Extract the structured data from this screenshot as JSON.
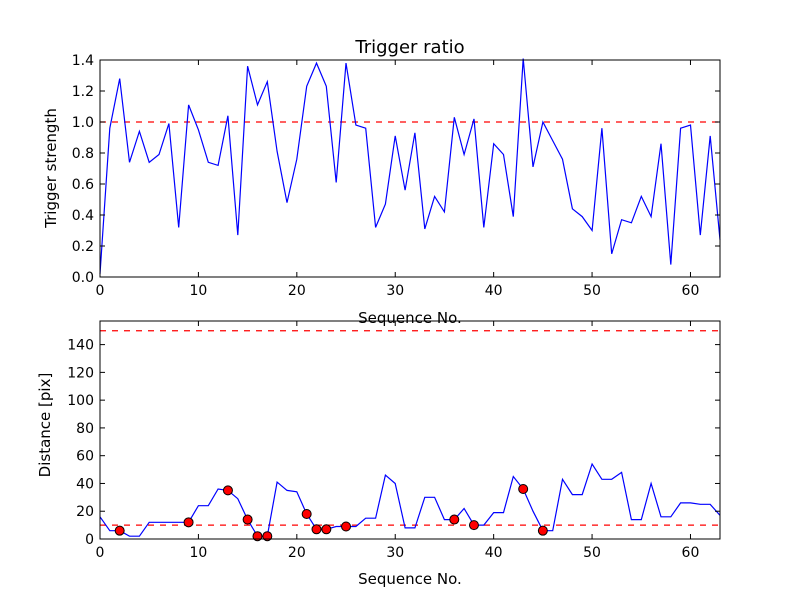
{
  "chart_data": [
    {
      "type": "line",
      "title": "Trigger ratio",
      "xlabel": "Sequence No.",
      "ylabel": "Trigger strength",
      "xlim": [
        0,
        63
      ],
      "ylim": [
        0,
        1.4
      ],
      "xticks": [
        "0",
        "10",
        "20",
        "30",
        "40",
        "50",
        "60"
      ],
      "yticks": [
        "0.0",
        "0.2",
        "0.4",
        "0.6",
        "0.8",
        "1.0",
        "1.2",
        "1.4"
      ],
      "threshold": 1.0,
      "colors": {
        "line": "#0000ff",
        "threshold": "#ff0000"
      },
      "series": [
        {
          "x": [
            0,
            1,
            2,
            3,
            4,
            5,
            6,
            7,
            8,
            9,
            10,
            11,
            12,
            13,
            14,
            15,
            16,
            17,
            18,
            19,
            20,
            21,
            22,
            23,
            24,
            25,
            26,
            27,
            28,
            29,
            30,
            31,
            32,
            33,
            34,
            35,
            36,
            37,
            38,
            39,
            40,
            41,
            42,
            43,
            44,
            45,
            46,
            47,
            48,
            49,
            50,
            51,
            52,
            53,
            54,
            55,
            56,
            57,
            58,
            59,
            60,
            61,
            62,
            63
          ],
          "values": [
            0.02,
            0.96,
            1.28,
            0.74,
            0.94,
            0.74,
            0.79,
            0.99,
            0.32,
            1.11,
            0.95,
            0.74,
            0.72,
            1.04,
            0.27,
            1.36,
            1.11,
            1.26,
            0.81,
            0.48,
            0.76,
            1.23,
            1.38,
            1.23,
            0.61,
            1.38,
            0.98,
            0.96,
            0.32,
            0.47,
            0.91,
            0.56,
            0.93,
            0.31,
            0.52,
            0.42,
            1.03,
            0.79,
            1.02,
            0.32,
            0.86,
            0.79,
            0.39,
            1.41,
            0.71,
            1.0,
            0.88,
            0.76,
            0.44,
            0.39,
            0.3,
            0.96,
            0.15,
            0.37,
            0.35,
            0.52,
            0.39,
            0.86,
            0.08,
            0.96,
            0.98,
            0.27,
            0.91,
            0.24
          ]
        }
      ]
    },
    {
      "type": "line",
      "title": "",
      "xlabel": "Sequence No.",
      "ylabel": "Distance [pix]",
      "xlim": [
        0,
        63
      ],
      "ylim": [
        0,
        157
      ],
      "xticks": [
        "0",
        "10",
        "20",
        "30",
        "40",
        "50",
        "60"
      ],
      "yticks": [
        "0",
        "20",
        "40",
        "60",
        "80",
        "100",
        "120",
        "140"
      ],
      "thresholds": [
        10,
        150
      ],
      "colors": {
        "line": "#0000ff",
        "threshold": "#ff0000",
        "marker": "#ff0000"
      },
      "series": [
        {
          "x": [
            0,
            1,
            2,
            3,
            4,
            5,
            6,
            7,
            8,
            9,
            10,
            11,
            12,
            13,
            14,
            15,
            16,
            17,
            18,
            19,
            20,
            21,
            22,
            23,
            24,
            25,
            26,
            27,
            28,
            29,
            30,
            31,
            32,
            33,
            34,
            35,
            36,
            37,
            38,
            39,
            40,
            41,
            42,
            43,
            44,
            45,
            46,
            47,
            48,
            49,
            50,
            51,
            52,
            53,
            54,
            55,
            56,
            57,
            58,
            59,
            60,
            61,
            62,
            63
          ],
          "values": [
            16,
            6,
            6,
            2,
            2,
            12,
            12,
            12,
            12,
            12,
            24,
            24,
            36,
            35,
            29,
            14,
            2,
            2,
            41,
            35,
            34,
            18,
            7,
            7,
            9,
            9,
            9,
            15,
            15,
            46,
            40,
            8,
            8,
            30,
            30,
            14,
            14,
            22,
            10,
            10,
            19,
            19,
            45,
            36,
            20,
            6,
            6,
            43,
            32,
            32,
            54,
            43,
            43,
            48,
            14,
            14,
            40,
            16,
            16,
            26,
            26,
            25,
            25,
            17
          ]
        }
      ],
      "markers": {
        "x": [
          2,
          9,
          13,
          15,
          16,
          17,
          21,
          22,
          23,
          25,
          36,
          38,
          43,
          45
        ],
        "values": [
          6,
          12,
          35,
          14,
          2,
          2,
          18,
          7,
          7,
          9,
          14,
          10,
          36,
          6
        ]
      }
    }
  ]
}
